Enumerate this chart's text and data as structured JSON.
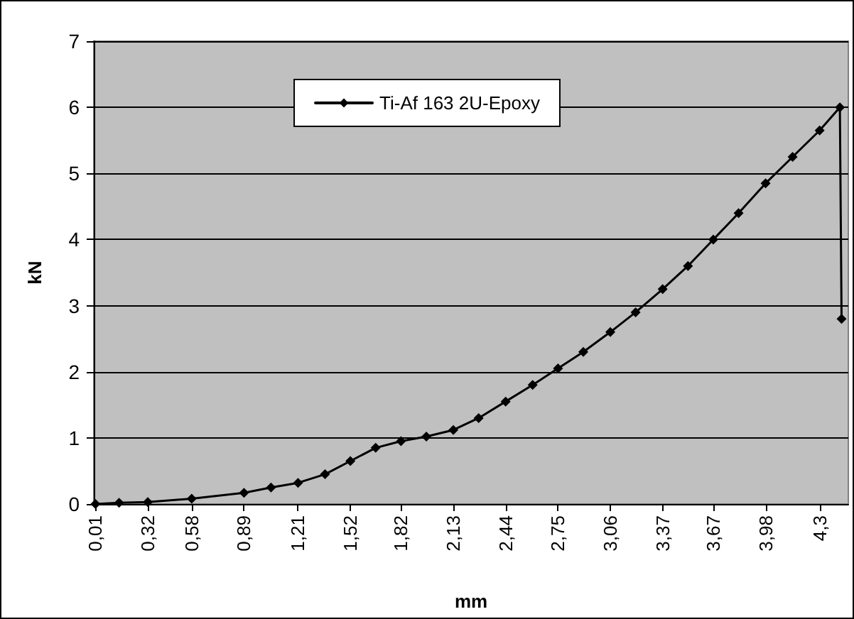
{
  "chart_data": {
    "type": "line",
    "xlabel": "mm",
    "ylabel": "kN",
    "x": [
      0.01,
      0.15,
      0.32,
      0.58,
      0.89,
      1.05,
      1.21,
      1.37,
      1.52,
      1.67,
      1.82,
      1.97,
      2.13,
      2.28,
      2.44,
      2.6,
      2.75,
      2.9,
      3.06,
      3.21,
      3.37,
      3.52,
      3.67,
      3.82,
      3.98,
      4.14,
      4.3,
      4.42,
      4.43
    ],
    "series": [
      {
        "name": "Ti-Af 163 2U-Epoxy",
        "color": "#000000",
        "values": [
          0.0,
          0.02,
          0.03,
          0.08,
          0.17,
          0.25,
          0.32,
          0.45,
          0.65,
          0.85,
          0.95,
          1.02,
          1.12,
          1.3,
          1.55,
          1.8,
          2.05,
          2.3,
          2.6,
          2.9,
          3.25,
          3.6,
          4.0,
          4.4,
          4.85,
          5.25,
          5.65,
          6.0,
          2.8
        ]
      }
    ],
    "xlim": [
      0,
      4.47
    ],
    "xticks": [
      {
        "value": 0.01,
        "label": "0,01"
      },
      {
        "value": 0.32,
        "label": "0,32"
      },
      {
        "value": 0.58,
        "label": "0,58"
      },
      {
        "value": 0.89,
        "label": "0,89"
      },
      {
        "value": 1.21,
        "label": "1,21"
      },
      {
        "value": 1.52,
        "label": "1,52"
      },
      {
        "value": 1.82,
        "label": "1,82"
      },
      {
        "value": 2.13,
        "label": "2,13"
      },
      {
        "value": 2.44,
        "label": "2,44"
      },
      {
        "value": 2.75,
        "label": "2,75"
      },
      {
        "value": 3.06,
        "label": "3,06"
      },
      {
        "value": 3.37,
        "label": "3,37"
      },
      {
        "value": 3.67,
        "label": "3,67"
      },
      {
        "value": 3.98,
        "label": "3,98"
      },
      {
        "value": 4.3,
        "label": "4,3"
      }
    ],
    "ylim": [
      0,
      7
    ],
    "yticks": [
      0,
      1,
      2,
      3,
      4,
      5,
      6,
      7
    ],
    "grid": "y",
    "legend": "top",
    "marker": "diamond",
    "line_style": "solid"
  }
}
